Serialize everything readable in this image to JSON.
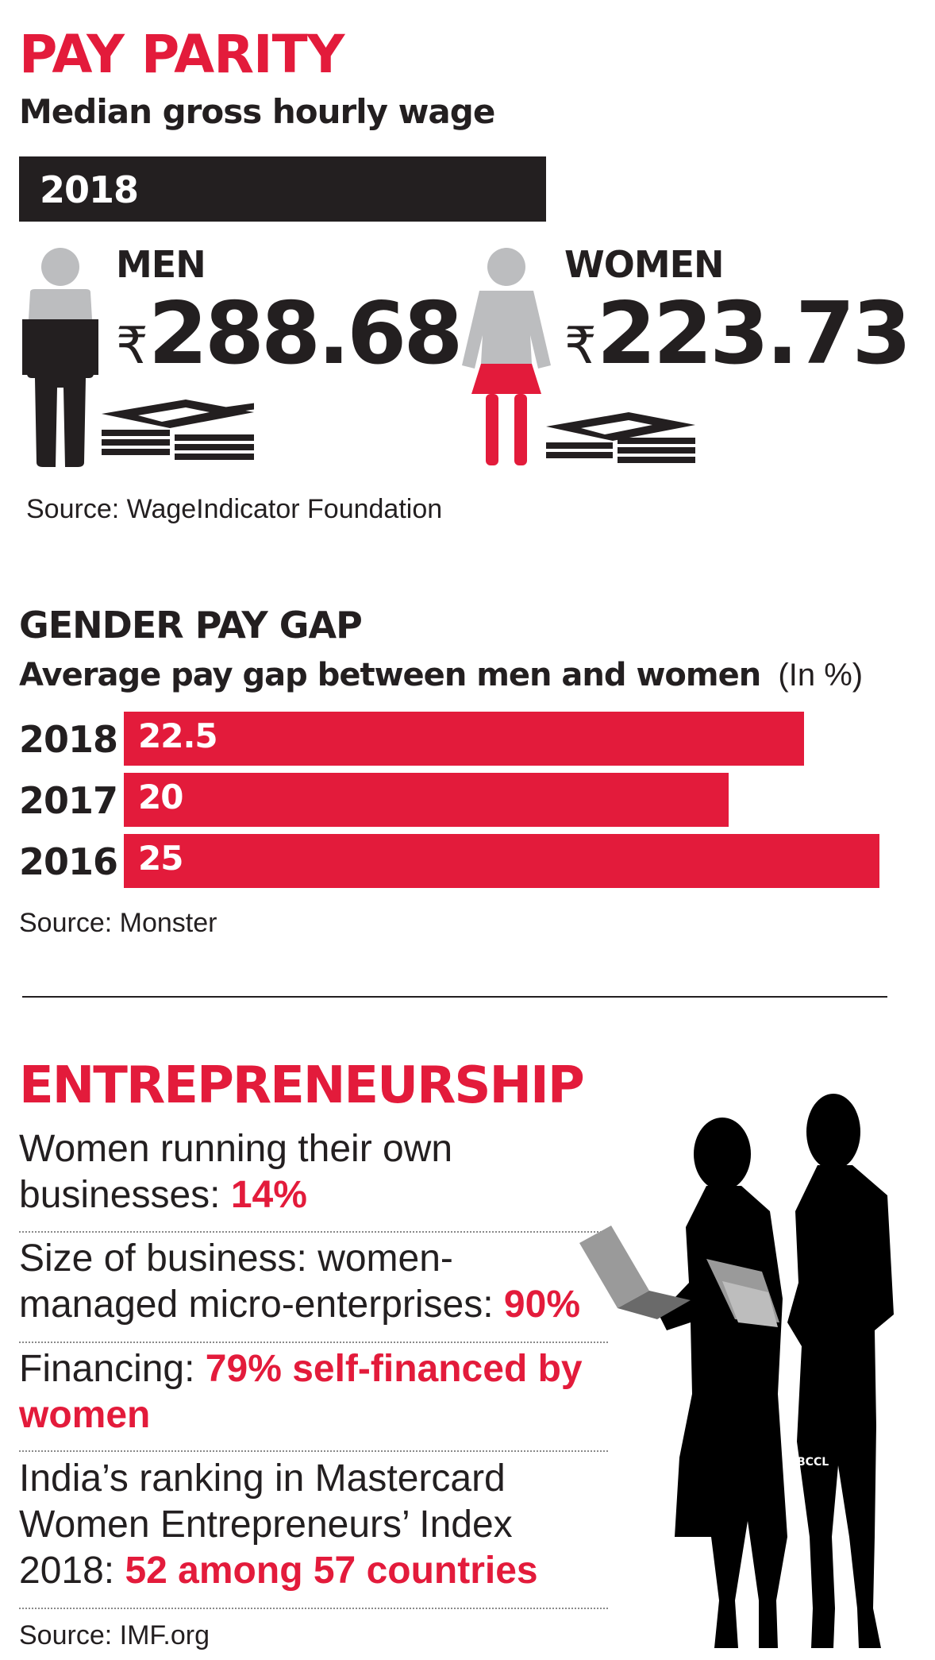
{
  "pay_parity": {
    "title": "PAY PARITY",
    "subtitle": "Median gross hourly wage",
    "year": "2018",
    "men": {
      "label": "MEN",
      "currency": "₹",
      "amount": "288.68"
    },
    "women": {
      "label": "WOMEN",
      "currency": "₹",
      "amount": "223.73"
    },
    "source": "Source: WageIndicator Foundation"
  },
  "gender_pay_gap": {
    "title": "GENDER PAY GAP",
    "subtitle": "Average pay gap between men and women",
    "unit": "(In %)",
    "source": "Source: Monster"
  },
  "chart_data": {
    "type": "bar",
    "orientation": "horizontal",
    "categories": [
      "2018",
      "2017",
      "2016"
    ],
    "values": [
      22.5,
      20,
      25
    ],
    "value_labels": [
      "22.5",
      "20",
      "25"
    ],
    "title": "GENDER PAY GAP",
    "subtitle": "Average pay gap between men and women",
    "unit": "(In %)",
    "xlim": [
      0,
      25
    ],
    "grid": false,
    "bar_color": "#e31b3b"
  },
  "entrepreneurship": {
    "title": "ENTREPRENEURSHIP",
    "facts": [
      {
        "text": "Women running their own businesses: ",
        "highlight": "14%"
      },
      {
        "text": "Size of business: women-managed micro-enterprises: ",
        "highlight": "90%"
      },
      {
        "text": "Financing: ",
        "highlight": "79% self-financed by women"
      },
      {
        "text": "India’s ranking in Mastercard Women Entrepreneurs’ Index 2018: ",
        "highlight": "52 among 57 countries"
      }
    ],
    "source": "Source: IMF.org",
    "photo_credit": "BCCL"
  },
  "colors": {
    "accent": "#e31b3b",
    "dark": "#231f20",
    "grey": "#bcbdbf"
  },
  "icons": [
    "man-figure-icon",
    "woman-figure-icon",
    "cash-stack-icon",
    "businesswomen-silhouette-icon"
  ]
}
